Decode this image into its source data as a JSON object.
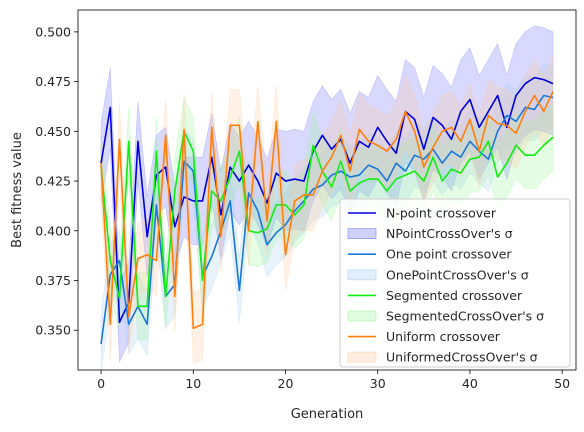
{
  "chart_data": {
    "type": "line",
    "title": "",
    "xlabel": "Generation",
    "ylabel": "Best fitness value",
    "xlim": [
      -2.5,
      51.5
    ],
    "ylim": [
      0.33,
      0.511
    ],
    "xticks": [
      0,
      10,
      20,
      30,
      40,
      50
    ],
    "yticks": [
      0.35,
      0.375,
      0.4,
      0.425,
      0.45,
      0.475,
      0.5
    ],
    "ytick_labels": [
      "0.350",
      "0.375",
      "0.400",
      "0.425",
      "0.450",
      "0.475",
      "0.500"
    ],
    "grid": false,
    "legend_position": "lower-right",
    "x": [
      0,
      1,
      2,
      3,
      4,
      5,
      6,
      7,
      8,
      9,
      10,
      11,
      12,
      13,
      14,
      15,
      16,
      17,
      18,
      19,
      20,
      21,
      22,
      23,
      24,
      25,
      26,
      27,
      28,
      29,
      30,
      31,
      32,
      33,
      34,
      35,
      36,
      37,
      38,
      39,
      40,
      41,
      42,
      43,
      44,
      45,
      46,
      47,
      48,
      49
    ],
    "series": [
      {
        "name": "N-point crossover",
        "band_name": "NPointCrossOver's σ",
        "color": "#0000dd",
        "band_color": "#6666ff",
        "values": [
          0.434,
          0.462,
          0.354,
          0.364,
          0.445,
          0.397,
          0.428,
          0.432,
          0.402,
          0.417,
          0.415,
          0.415,
          0.437,
          0.408,
          0.432,
          0.425,
          0.433,
          0.425,
          0.414,
          0.429,
          0.425,
          0.426,
          0.425,
          0.44,
          0.448,
          0.441,
          0.446,
          0.434,
          0.445,
          0.442,
          0.452,
          0.445,
          0.439,
          0.46,
          0.456,
          0.441,
          0.457,
          0.453,
          0.446,
          0.46,
          0.466,
          0.452,
          0.46,
          0.468,
          0.452,
          0.468,
          0.474,
          0.477,
          0.476,
          0.474
        ],
        "sd": [
          0.02,
          0.02,
          0.02,
          0.02,
          0.02,
          0.02,
          0.02,
          0.02,
          0.02,
          0.02,
          0.022,
          0.022,
          0.022,
          0.022,
          0.022,
          0.022,
          0.022,
          0.022,
          0.022,
          0.022,
          0.025,
          0.025,
          0.025,
          0.025,
          0.025,
          0.025,
          0.025,
          0.025,
          0.025,
          0.025,
          0.026,
          0.026,
          0.026,
          0.026,
          0.026,
          0.026,
          0.026,
          0.026,
          0.026,
          0.026,
          0.026,
          0.026,
          0.026,
          0.026,
          0.026,
          0.026,
          0.026,
          0.026,
          0.026,
          0.026
        ]
      },
      {
        "name": "One point crossover",
        "band_name": "OnePointCrossOver's σ",
        "color": "#1a78d6",
        "band_color": "#9ecbf0",
        "values": [
          0.343,
          0.378,
          0.385,
          0.353,
          0.362,
          0.353,
          0.413,
          0.367,
          0.373,
          0.435,
          0.43,
          0.377,
          0.387,
          0.4,
          0.415,
          0.37,
          0.419,
          0.41,
          0.393,
          0.399,
          0.403,
          0.41,
          0.415,
          0.421,
          0.423,
          0.428,
          0.43,
          0.427,
          0.428,
          0.433,
          0.431,
          0.425,
          0.434,
          0.43,
          0.438,
          0.436,
          0.441,
          0.434,
          0.44,
          0.437,
          0.445,
          0.44,
          0.436,
          0.45,
          0.458,
          0.455,
          0.462,
          0.461,
          0.468,
          0.467
        ],
        "sd": [
          0.015,
          0.015,
          0.015,
          0.015,
          0.016,
          0.016,
          0.016,
          0.016,
          0.016,
          0.016,
          0.016,
          0.016,
          0.016,
          0.016,
          0.016,
          0.016,
          0.016,
          0.016,
          0.016,
          0.016,
          0.016,
          0.016,
          0.016,
          0.016,
          0.016,
          0.016,
          0.016,
          0.016,
          0.016,
          0.016,
          0.016,
          0.016,
          0.016,
          0.016,
          0.016,
          0.016,
          0.016,
          0.016,
          0.016,
          0.016,
          0.016,
          0.016,
          0.016,
          0.016,
          0.016,
          0.016,
          0.016,
          0.016,
          0.016,
          0.016
        ]
      },
      {
        "name": "Segmented crossover",
        "band_name": "SegmentedCrossOver's σ",
        "color": "#11ee11",
        "band_color": "#99f599",
        "values": [
          0.432,
          0.385,
          0.366,
          0.445,
          0.362,
          0.362,
          0.44,
          0.367,
          0.42,
          0.45,
          0.44,
          0.375,
          0.42,
          0.415,
          0.427,
          0.44,
          0.4,
          0.399,
          0.401,
          0.413,
          0.413,
          0.408,
          0.413,
          0.443,
          0.43,
          0.422,
          0.435,
          0.42,
          0.424,
          0.426,
          0.426,
          0.42,
          0.426,
          0.428,
          0.43,
          0.425,
          0.437,
          0.425,
          0.431,
          0.429,
          0.436,
          0.437,
          0.445,
          0.427,
          0.434,
          0.443,
          0.438,
          0.438,
          0.443,
          0.447
        ],
        "sd": [
          0.017,
          0.017,
          0.017,
          0.017,
          0.017,
          0.017,
          0.017,
          0.017,
          0.017,
          0.017,
          0.017,
          0.017,
          0.017,
          0.017,
          0.017,
          0.017,
          0.017,
          0.017,
          0.017,
          0.017,
          0.017,
          0.017,
          0.017,
          0.017,
          0.017,
          0.017,
          0.017,
          0.017,
          0.017,
          0.017,
          0.017,
          0.017,
          0.017,
          0.017,
          0.017,
          0.017,
          0.017,
          0.017,
          0.017,
          0.017,
          0.017,
          0.017,
          0.017,
          0.017,
          0.017,
          0.017,
          0.017,
          0.017,
          0.017,
          0.017
        ]
      },
      {
        "name": "Uniform crossover",
        "band_name": "UniformedCrossOver's σ",
        "color": "#ff7f0e",
        "band_color": "#ffc899",
        "values": [
          0.434,
          0.353,
          0.446,
          0.357,
          0.386,
          0.388,
          0.385,
          0.448,
          0.367,
          0.451,
          0.351,
          0.353,
          0.452,
          0.397,
          0.453,
          0.453,
          0.4,
          0.455,
          0.405,
          0.455,
          0.388,
          0.415,
          0.418,
          0.418,
          0.43,
          0.437,
          0.448,
          0.43,
          0.451,
          0.445,
          0.443,
          0.44,
          0.446,
          0.46,
          0.45,
          0.432,
          0.442,
          0.45,
          0.452,
          0.445,
          0.456,
          0.44,
          0.458,
          0.454,
          0.453,
          0.449,
          0.46,
          0.468,
          0.46,
          0.47
        ],
        "sd": [
          0.018,
          0.018,
          0.018,
          0.018,
          0.018,
          0.018,
          0.018,
          0.018,
          0.018,
          0.018,
          0.018,
          0.018,
          0.018,
          0.018,
          0.018,
          0.018,
          0.018,
          0.018,
          0.018,
          0.018,
          0.018,
          0.018,
          0.018,
          0.018,
          0.018,
          0.018,
          0.018,
          0.018,
          0.018,
          0.018,
          0.018,
          0.018,
          0.018,
          0.018,
          0.018,
          0.018,
          0.018,
          0.018,
          0.018,
          0.018,
          0.018,
          0.018,
          0.018,
          0.018,
          0.018,
          0.018,
          0.018,
          0.018,
          0.018,
          0.018
        ]
      }
    ]
  }
}
